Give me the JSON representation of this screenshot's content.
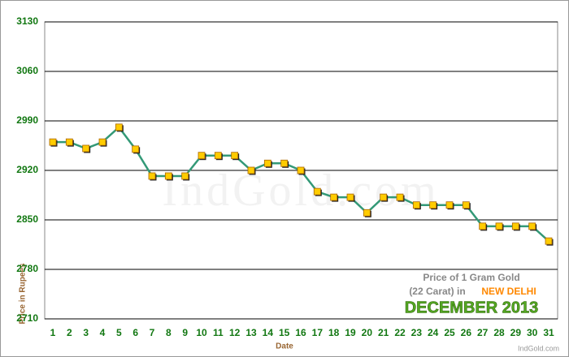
{
  "chart_data": {
    "type": "line",
    "y_axis_label": "Price in Rupees",
    "x_axis_label": "Date",
    "annotation_line1": "Price of 1 Gram Gold",
    "annotation_line2": "(22 Carat) in",
    "annotation_city": "NEW DELHI",
    "annotation_month": "DECEMBER 2013",
    "watermark": "IndGold.com",
    "credit": "IndGold.com",
    "categories": [
      "1",
      "2",
      "3",
      "4",
      "5",
      "6",
      "7",
      "8",
      "9",
      "10",
      "11",
      "12",
      "13",
      "14",
      "15",
      "16",
      "17",
      "18",
      "19",
      "20",
      "21",
      "22",
      "23",
      "24",
      "25",
      "26",
      "27",
      "28",
      "29",
      "30",
      "31"
    ],
    "series": [
      {
        "name": "Price",
        "color": "#339977",
        "values": [
          2960,
          2960,
          2951,
          2960,
          2981,
          2950,
          2912,
          2912,
          2912,
          2941,
          2941,
          2941,
          2920,
          2930,
          2930,
          2920,
          2890,
          2882,
          2882,
          2860,
          2882,
          2882,
          2871,
          2871,
          2871,
          2871,
          2841,
          2841,
          2841,
          2841,
          2820
        ]
      }
    ],
    "marker_color": "#ffcc00",
    "ylim": [
      2710,
      3130
    ],
    "yticks": [
      2710,
      2780,
      2850,
      2920,
      2990,
      3060,
      3130
    ],
    "grid": true
  }
}
